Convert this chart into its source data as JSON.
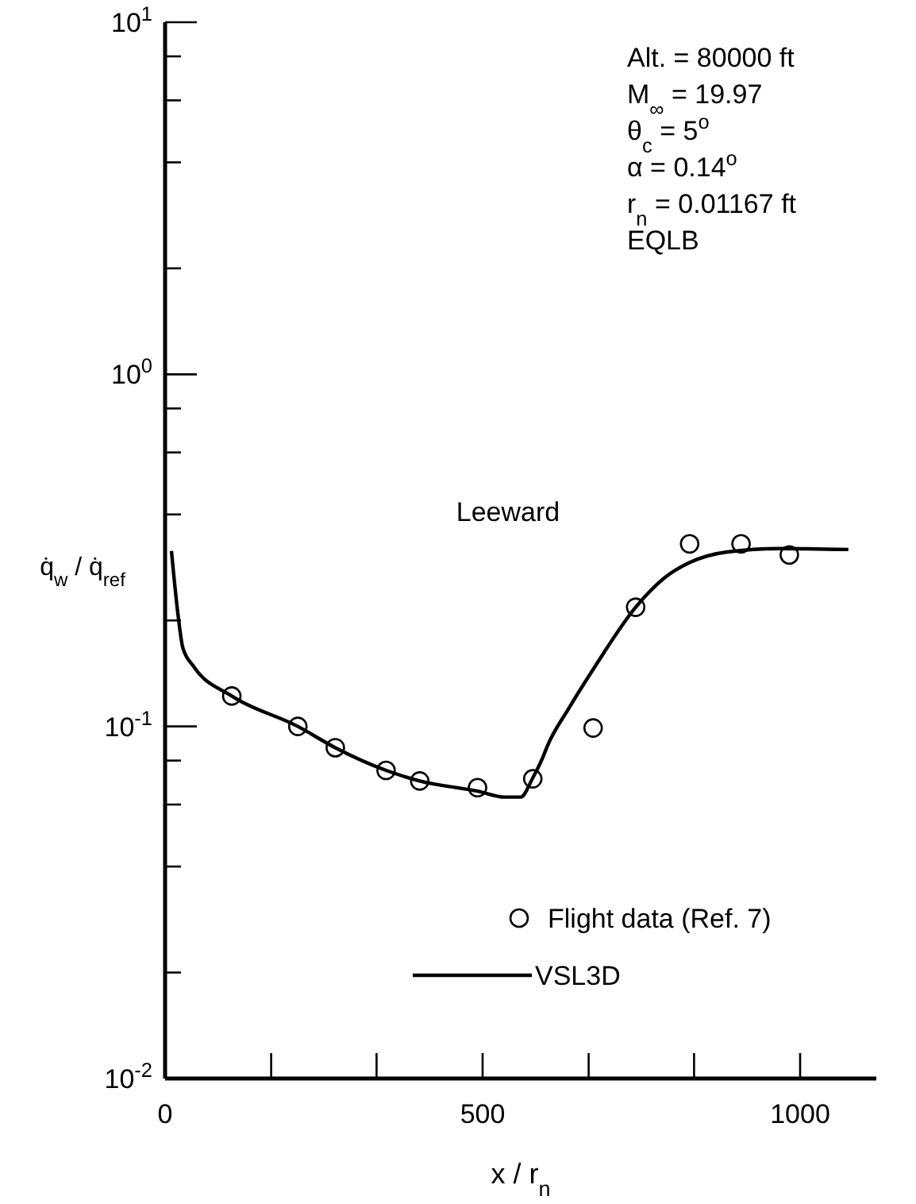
{
  "chart_data": {
    "type": "line",
    "xlabel": "x / r$_{n}$",
    "ylabel": "q̇$_{w}$ / q̇$_{ref}$",
    "log": "y",
    "xlim": [
      0,
      1120
    ],
    "ylim": [
      0.01,
      10
    ],
    "xticks": [
      0,
      {
        "value": 167,
        "label": null
      },
      {
        "value": 333,
        "label": null
      },
      500,
      {
        "value": 667,
        "label": null
      },
      {
        "value": 833,
        "label": null
      },
      1000
    ],
    "yticks": [
      {
        "value": 0.01,
        "label": "10$^{-2}$"
      },
      {
        "value": 0.02,
        "label": null
      },
      {
        "value": 0.04,
        "label": null
      },
      {
        "value": 0.06,
        "label": null
      },
      {
        "value": 0.08,
        "label": null
      },
      {
        "value": 0.1,
        "label": "10$^{-1}$"
      },
      {
        "value": 0.2,
        "label": null
      },
      {
        "value": 0.4,
        "label": null
      },
      {
        "value": 0.6,
        "label": null
      },
      {
        "value": 0.8,
        "label": null
      },
      {
        "value": 1,
        "label": "10$^{0}$"
      },
      {
        "value": 2,
        "label": null
      },
      {
        "value": 4,
        "label": null
      },
      {
        "value": 6,
        "label": null
      },
      {
        "value": 8,
        "label": null
      },
      {
        "value": 10,
        "label": "10$^{1}$"
      }
    ],
    "grid": false,
    "legend": "bottom right",
    "series": [
      {
        "name": "Flight data (Ref. 7)",
        "type": "scatter",
        "marker": "circle",
        "color": "#000000",
        "x": [
          105,
          209,
          268,
          348,
          401,
          492,
          579,
          674,
          741,
          826,
          907,
          983
        ],
        "values": [
          0.122,
          0.1,
          0.087,
          0.075,
          0.07,
          0.067,
          0.071,
          0.099,
          0.218,
          0.33,
          0.33,
          0.307
        ]
      },
      {
        "name": "VSL3D",
        "line_style": "solid",
        "marker": "none",
        "color": "#000000",
        "x": [
          10,
          20,
          28,
          45,
          105,
          209,
          268,
          348,
          401,
          492,
          535,
          560,
          579,
          594,
          602,
          635,
          677,
          741,
          785,
          826,
          885,
          968,
          1076
        ],
        "values": [
          0.315,
          0.21,
          0.167,
          0.148,
          0.122,
          0.1,
          0.087,
          0.075,
          0.07,
          0.0655,
          0.063,
          0.063,
          0.0714,
          0.081,
          0.088,
          0.112,
          0.148,
          0.218,
          0.263,
          0.292,
          0.313,
          0.32,
          0.318
        ]
      }
    ],
    "annotations": [
      "Alt. = 80000 ft",
      "M$_{∞}$ = 19.97",
      "θ$_{c}$ = 5$^{o}$",
      "α = 0.14$^{o}$",
      "r$_{n}$ = 0.01167 ft",
      "EQLB",
      "Leeward"
    ]
  }
}
